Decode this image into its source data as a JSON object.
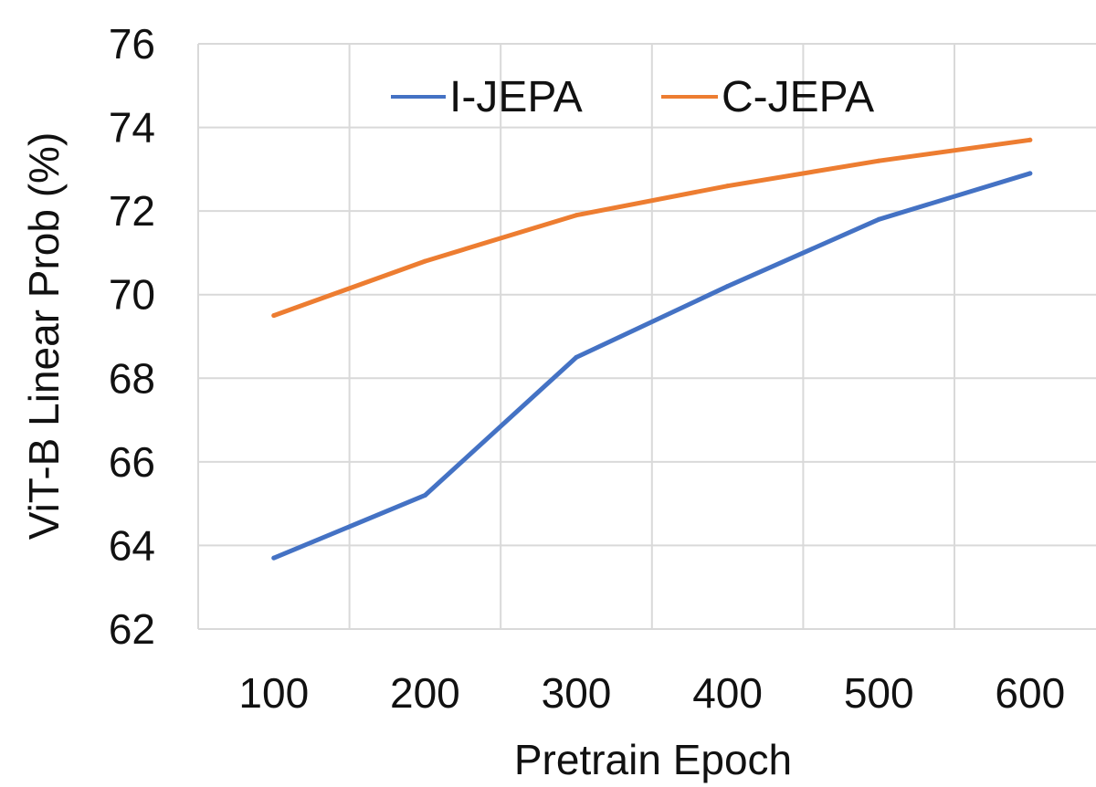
{
  "chart_data": {
    "type": "line",
    "title": "",
    "xlabel": "Pretrain Epoch",
    "ylabel": "ViT-B Linear Prob (%)",
    "categories": [
      "100",
      "200",
      "300",
      "400",
      "500",
      "600"
    ],
    "ylim": [
      62,
      76
    ],
    "yticks": [
      "62",
      "64",
      "66",
      "68",
      "70",
      "72",
      "74",
      "76"
    ],
    "grid": true,
    "legend_position": "top",
    "series": [
      {
        "name": "I-JEPA",
        "color": "#4472c4",
        "values": [
          63.7,
          65.2,
          68.5,
          70.2,
          71.8,
          72.9
        ]
      },
      {
        "name": "C-JEPA",
        "color": "#ed7d31",
        "values": [
          69.5,
          70.8,
          71.9,
          72.6,
          73.2,
          73.7
        ]
      }
    ]
  }
}
